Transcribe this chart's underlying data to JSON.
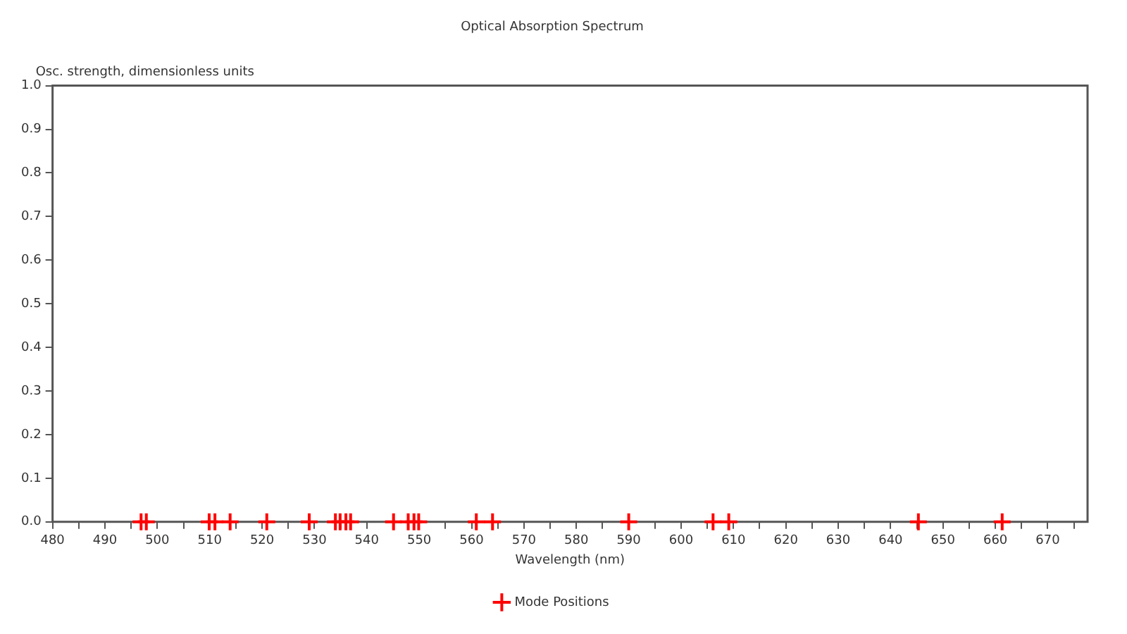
{
  "chart_data": {
    "type": "scatter",
    "title": "Optical Absorption Spectrum",
    "xlabel": "Wavelength (nm)",
    "ylabel": "Osc. strength, dimensionless units",
    "series": [
      {
        "name": "Mode Positions",
        "color": "#ff0000",
        "x": [
          496.9,
          497.9,
          509.9,
          511.0,
          513.9,
          520.9,
          529.0,
          534.0,
          534.9,
          536.0,
          536.9,
          545.1,
          547.9,
          549.0,
          549.9,
          560.9,
          564.0,
          590.0,
          606.1,
          609.1,
          645.3,
          661.3
        ],
        "values": [
          0,
          0,
          0,
          0,
          0,
          0,
          0,
          0,
          0,
          0,
          0,
          0,
          0,
          0,
          0,
          0,
          0,
          0,
          0,
          0,
          0,
          0
        ]
      }
    ],
    "xlim": [
      480,
      677.6
    ],
    "xticks": [
      480,
      {
        "value": 485,
        "label": null
      },
      490,
      {
        "value": 495,
        "label": null
      },
      500,
      {
        "value": 505,
        "label": null
      },
      510,
      {
        "value": 515,
        "label": null
      },
      520,
      {
        "value": 525,
        "label": null
      },
      530,
      {
        "value": 535,
        "label": null
      },
      540,
      {
        "value": 545,
        "label": null
      },
      550,
      {
        "value": 555,
        "label": null
      },
      560,
      {
        "value": 565,
        "label": null
      },
      570,
      {
        "value": 575,
        "label": null
      },
      580,
      {
        "value": 585,
        "label": null
      },
      590,
      {
        "value": 595,
        "label": null
      },
      600,
      {
        "value": 605,
        "label": null
      },
      610,
      {
        "value": 615,
        "label": null
      },
      620,
      {
        "value": 625,
        "label": null
      },
      630,
      {
        "value": 635,
        "label": null
      },
      640,
      {
        "value": 645,
        "label": null
      },
      650,
      {
        "value": 655,
        "label": null
      },
      660,
      {
        "value": 665,
        "label": null
      },
      670,
      {
        "value": 675,
        "label": null
      }
    ],
    "ylim": [
      0,
      1
    ],
    "yticks": [
      {
        "value": 0,
        "label": "0.0"
      },
      0.1,
      0.2,
      0.3,
      0.4,
      0.5,
      0.6,
      0.7,
      0.8,
      0.9,
      {
        "value": 1,
        "label": "1.0"
      }
    ],
    "grid": false,
    "legend": "bottom",
    "marker": "cross"
  }
}
